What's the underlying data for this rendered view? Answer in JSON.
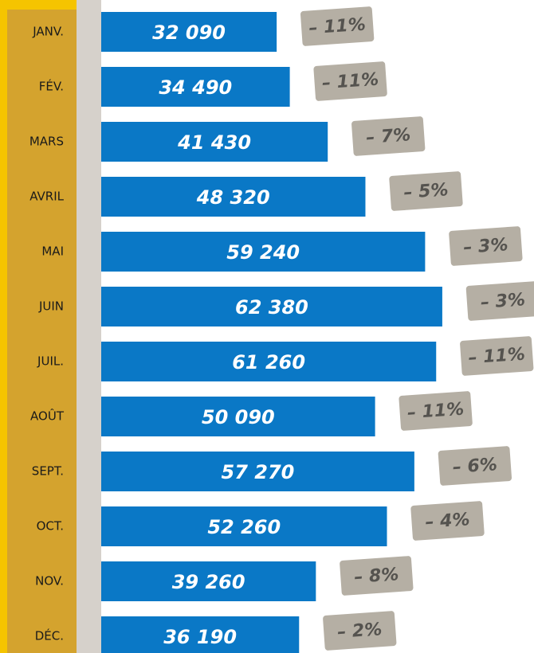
{
  "chart_data": {
    "type": "hbar",
    "categories": [
      "JANV.",
      "FÉV.",
      "MARS",
      "AVRIL",
      "MAI",
      "JUIN",
      "JUIL.",
      "AOÛT",
      "SEPT.",
      "OCT.",
      "NOV.",
      "DÉC."
    ],
    "values": [
      32090,
      34490,
      41430,
      48320,
      59240,
      62380,
      61260,
      50090,
      57270,
      52260,
      39260,
      36190
    ],
    "value_labels": [
      "32 090",
      "34 490",
      "41 430",
      "48 320",
      "59 240",
      "62 380",
      "61 260",
      "50 090",
      "57 270",
      "52 260",
      "39 260",
      "36 190"
    ],
    "color": "#0a78c6",
    "changes": [
      -11,
      -11,
      -7,
      -5,
      -3,
      -3,
      -11,
      -11,
      -6,
      -4,
      -8,
      -2
    ],
    "change_labels": [
      "– 11%",
      "– 11%",
      "– 7%",
      "– 5%",
      "– 3%",
      "– 3%",
      "– 11%",
      "– 11%",
      "– 6%",
      "– 4%",
      "– 8%",
      "– 2%"
    ],
    "change_color": "#b5afa4"
  }
}
